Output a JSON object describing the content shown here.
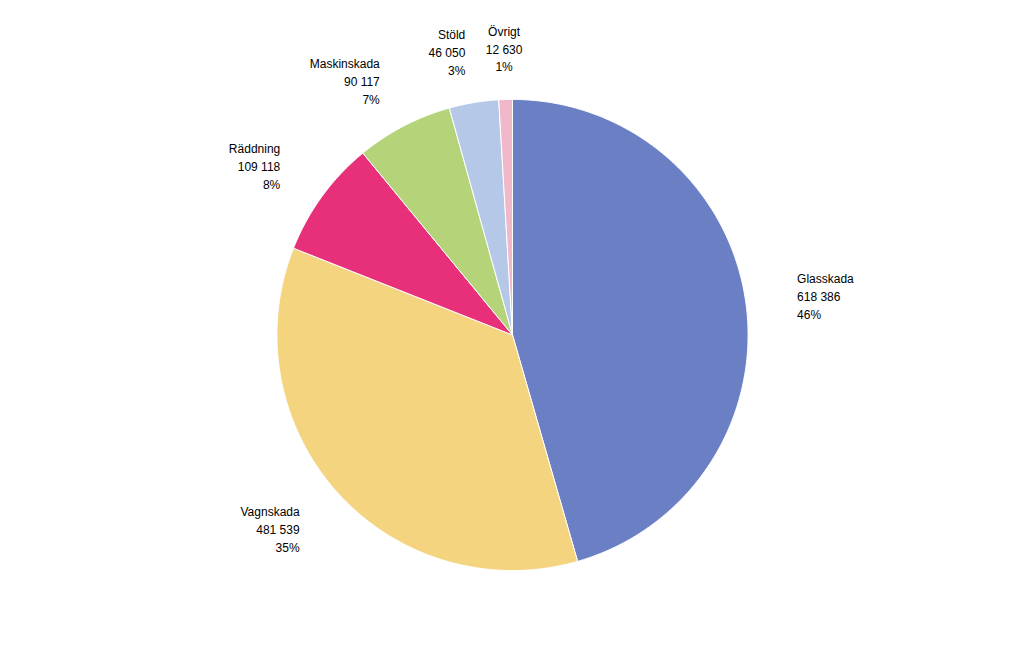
{
  "chart_data": {
    "type": "pie",
    "categories": [
      "Glasskada",
      "Vagnskada",
      "Räddning",
      "Maskinskada",
      "Stöld",
      "Övrigt"
    ],
    "values": [
      618386,
      481539,
      109118,
      90117,
      46050,
      12630
    ],
    "value_labels": [
      "618 386",
      "481 539",
      "109 118",
      "90 117",
      "46 050",
      "12 630"
    ],
    "percentages": [
      46,
      35,
      8,
      7,
      3,
      1
    ],
    "percentage_labels": [
      "46%",
      "35%",
      "8%",
      "7%",
      "3%",
      "1%"
    ],
    "colors": [
      "#6b7fc4",
      "#f5d480",
      "#e8307a",
      "#b5d47a",
      "#b5c8e8",
      "#f0b8c8"
    ]
  }
}
